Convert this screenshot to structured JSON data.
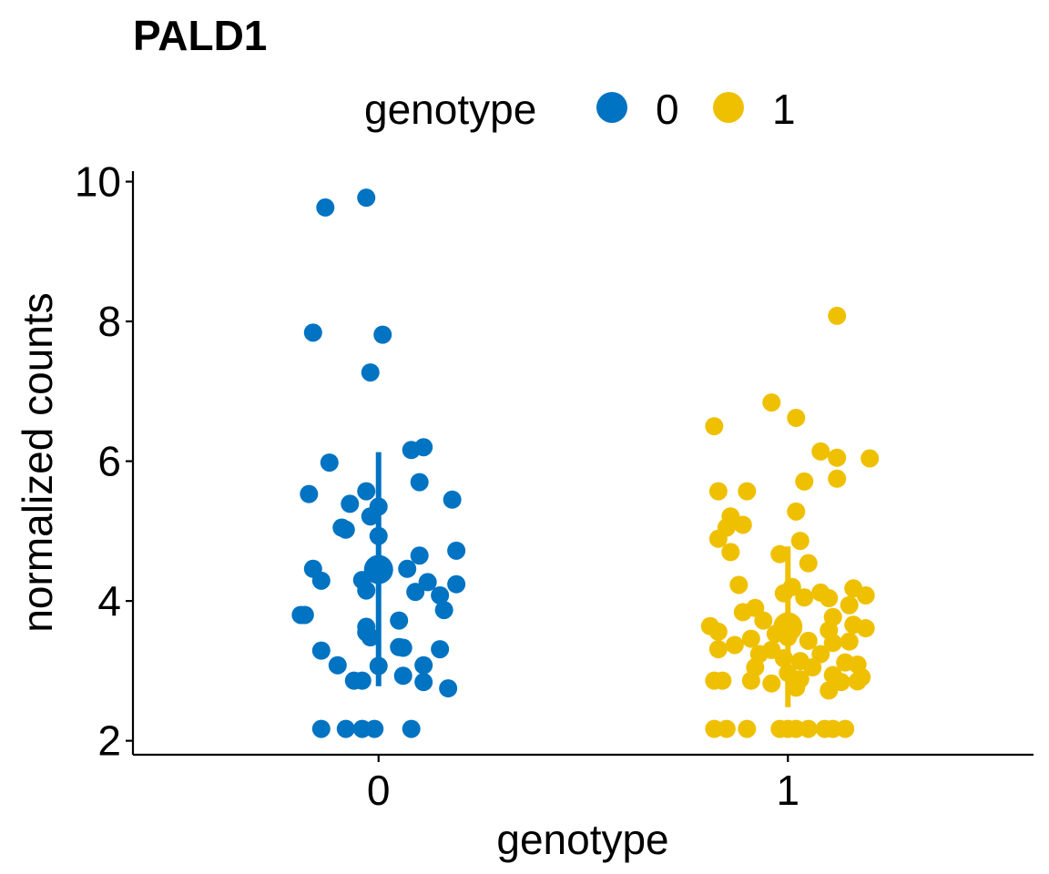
{
  "chart_data": {
    "type": "scatter",
    "title": "PALD1",
    "xlabel": "genotype",
    "ylabel": "normalized counts",
    "x_categories": [
      "0",
      "1"
    ],
    "y_ticks": [
      2,
      4,
      6,
      8,
      10
    ],
    "ylim": [
      1.8,
      10.15
    ],
    "grid": false,
    "legend": {
      "title": "genotype",
      "position": "top",
      "entries": [
        "0",
        "1"
      ]
    },
    "colors": {
      "0": "#0073C2",
      "1": "#EFC000"
    },
    "series": [
      {
        "name": "0",
        "summary": {
          "mean": 4.45,
          "lower": 2.78,
          "upper": 6.13
        },
        "points": [
          {
            "x": -0.13,
            "y": 9.63
          },
          {
            "x": -0.03,
            "y": 9.77
          },
          {
            "x": -0.16,
            "y": 7.84
          },
          {
            "x": 0.01,
            "y": 7.81
          },
          {
            "x": -0.02,
            "y": 7.27
          },
          {
            "x": -0.12,
            "y": 5.98
          },
          {
            "x": 0.08,
            "y": 6.16
          },
          {
            "x": 0.11,
            "y": 6.2
          },
          {
            "x": -0.17,
            "y": 5.53
          },
          {
            "x": -0.03,
            "y": 5.57
          },
          {
            "x": 0.1,
            "y": 5.7
          },
          {
            "x": 0.18,
            "y": 5.45
          },
          {
            "x": -0.07,
            "y": 5.39
          },
          {
            "x": 0.0,
            "y": 5.35
          },
          {
            "x": -0.02,
            "y": 5.21
          },
          {
            "x": -0.09,
            "y": 5.05
          },
          {
            "x": -0.08,
            "y": 5.02
          },
          {
            "x": 0.0,
            "y": 4.93
          },
          {
            "x": 0.19,
            "y": 4.72
          },
          {
            "x": 0.1,
            "y": 4.65
          },
          {
            "x": -0.16,
            "y": 4.46
          },
          {
            "x": 0.07,
            "y": 4.46
          },
          {
            "x": -0.14,
            "y": 4.29
          },
          {
            "x": -0.04,
            "y": 4.3
          },
          {
            "x": 0.12,
            "y": 4.27
          },
          {
            "x": 0.19,
            "y": 4.24
          },
          {
            "x": -0.03,
            "y": 4.15
          },
          {
            "x": 0.09,
            "y": 4.13
          },
          {
            "x": 0.15,
            "y": 4.08
          },
          {
            "x": 0.16,
            "y": 3.87
          },
          {
            "x": -0.19,
            "y": 3.8
          },
          {
            "x": -0.18,
            "y": 3.8
          },
          {
            "x": 0.05,
            "y": 3.72
          },
          {
            "x": -0.03,
            "y": 3.63
          },
          {
            "x": -0.03,
            "y": 3.55
          },
          {
            "x": -0.02,
            "y": 3.48
          },
          {
            "x": 0.05,
            "y": 3.34
          },
          {
            "x": 0.06,
            "y": 3.33
          },
          {
            "x": 0.15,
            "y": 3.31
          },
          {
            "x": -0.14,
            "y": 3.29
          },
          {
            "x": -0.1,
            "y": 3.08
          },
          {
            "x": 0.11,
            "y": 3.08
          },
          {
            "x": 0.0,
            "y": 3.07
          },
          {
            "x": 0.06,
            "y": 2.93
          },
          {
            "x": -0.06,
            "y": 2.86
          },
          {
            "x": -0.04,
            "y": 2.86
          },
          {
            "x": 0.11,
            "y": 2.84
          },
          {
            "x": 0.17,
            "y": 2.75
          },
          {
            "x": -0.14,
            "y": 2.17
          },
          {
            "x": -0.08,
            "y": 2.17
          },
          {
            "x": -0.04,
            "y": 2.17
          },
          {
            "x": -0.01,
            "y": 2.17
          },
          {
            "x": 0.08,
            "y": 2.17
          }
        ]
      },
      {
        "name": "1",
        "summary": {
          "mean": 3.63,
          "lower": 2.48,
          "upper": 4.78
        },
        "points": [
          {
            "x": 1.12,
            "y": 8.08
          },
          {
            "x": 0.96,
            "y": 6.84
          },
          {
            "x": 0.82,
            "y": 6.5
          },
          {
            "x": 1.02,
            "y": 6.62
          },
          {
            "x": 1.08,
            "y": 6.14
          },
          {
            "x": 1.12,
            "y": 6.05
          },
          {
            "x": 1.2,
            "y": 6.04
          },
          {
            "x": 1.12,
            "y": 5.75
          },
          {
            "x": 1.04,
            "y": 5.71
          },
          {
            "x": 0.83,
            "y": 5.57
          },
          {
            "x": 0.9,
            "y": 5.57
          },
          {
            "x": 1.02,
            "y": 5.28
          },
          {
            "x": 0.86,
            "y": 5.21
          },
          {
            "x": 0.85,
            "y": 5.05
          },
          {
            "x": 0.89,
            "y": 5.09
          },
          {
            "x": 0.83,
            "y": 4.89
          },
          {
            "x": 1.03,
            "y": 4.86
          },
          {
            "x": 0.86,
            "y": 4.7
          },
          {
            "x": 0.98,
            "y": 4.67
          },
          {
            "x": 1.05,
            "y": 4.54
          },
          {
            "x": 0.88,
            "y": 4.23
          },
          {
            "x": 1.01,
            "y": 4.2
          },
          {
            "x": 1.08,
            "y": 4.12
          },
          {
            "x": 1.16,
            "y": 4.18
          },
          {
            "x": 1.19,
            "y": 4.08
          },
          {
            "x": 0.99,
            "y": 4.11
          },
          {
            "x": 1.04,
            "y": 4.05
          },
          {
            "x": 1.1,
            "y": 4.04
          },
          {
            "x": 1.15,
            "y": 3.94
          },
          {
            "x": 0.92,
            "y": 3.9
          },
          {
            "x": 0.89,
            "y": 3.84
          },
          {
            "x": 1.11,
            "y": 3.77
          },
          {
            "x": 0.94,
            "y": 3.72
          },
          {
            "x": 1.16,
            "y": 3.66
          },
          {
            "x": 1.19,
            "y": 3.61
          },
          {
            "x": 0.81,
            "y": 3.64
          },
          {
            "x": 1.1,
            "y": 3.58
          },
          {
            "x": 0.83,
            "y": 3.56
          },
          {
            "x": 0.97,
            "y": 3.53
          },
          {
            "x": 1.0,
            "y": 3.48
          },
          {
            "x": 1.05,
            "y": 3.43
          },
          {
            "x": 0.91,
            "y": 3.46
          },
          {
            "x": 1.15,
            "y": 3.42
          },
          {
            "x": 1.11,
            "y": 3.4
          },
          {
            "x": 0.87,
            "y": 3.37
          },
          {
            "x": 0.96,
            "y": 3.3
          },
          {
            "x": 0.83,
            "y": 3.31
          },
          {
            "x": 1.08,
            "y": 3.24
          },
          {
            "x": 0.93,
            "y": 3.24
          },
          {
            "x": 0.99,
            "y": 3.18
          },
          {
            "x": 1.03,
            "y": 3.14
          },
          {
            "x": 1.14,
            "y": 3.12
          },
          {
            "x": 1.17,
            "y": 3.09
          },
          {
            "x": 1.06,
            "y": 3.05
          },
          {
            "x": 0.92,
            "y": 3.05
          },
          {
            "x": 1.0,
            "y": 2.97
          },
          {
            "x": 1.11,
            "y": 2.94
          },
          {
            "x": 1.18,
            "y": 2.91
          },
          {
            "x": 0.82,
            "y": 2.86
          },
          {
            "x": 0.84,
            "y": 2.86
          },
          {
            "x": 0.91,
            "y": 2.86
          },
          {
            "x": 0.96,
            "y": 2.82
          },
          {
            "x": 1.03,
            "y": 2.88
          },
          {
            "x": 1.13,
            "y": 2.84
          },
          {
            "x": 1.17,
            "y": 2.85
          },
          {
            "x": 1.02,
            "y": 2.76
          },
          {
            "x": 1.1,
            "y": 2.72
          },
          {
            "x": 0.82,
            "y": 2.17
          },
          {
            "x": 0.85,
            "y": 2.17
          },
          {
            "x": 0.9,
            "y": 2.17
          },
          {
            "x": 0.98,
            "y": 2.17
          },
          {
            "x": 1.0,
            "y": 2.17
          },
          {
            "x": 1.02,
            "y": 2.17
          },
          {
            "x": 1.05,
            "y": 2.17
          },
          {
            "x": 1.09,
            "y": 2.17
          },
          {
            "x": 1.11,
            "y": 2.17
          },
          {
            "x": 1.14,
            "y": 2.17
          }
        ]
      }
    ]
  }
}
